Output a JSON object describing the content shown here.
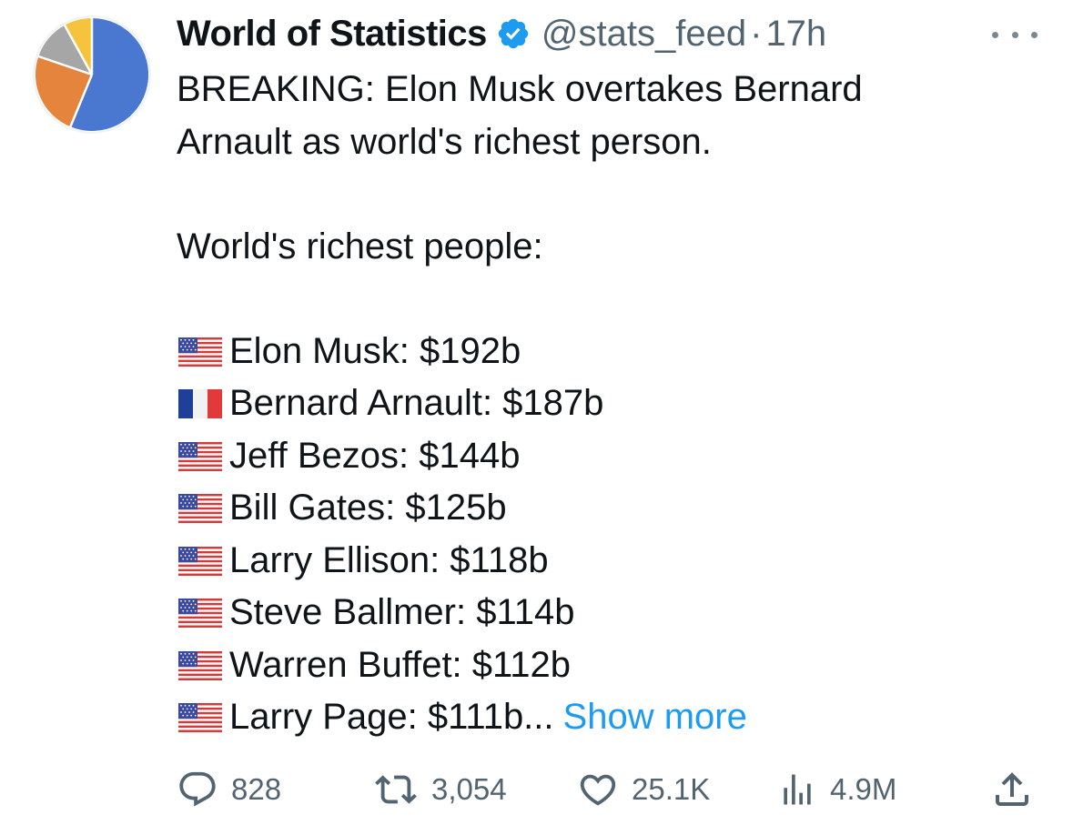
{
  "author": {
    "name": "World of Statistics",
    "handle": "@stats_feed",
    "separator": "·",
    "time": "17h",
    "verified": true,
    "avatar_icon": "pie-chart-icon",
    "avatar_colors": [
      "#4a78d0",
      "#e5843d",
      "#a6a6a6",
      "#f5c43c"
    ]
  },
  "tweet": {
    "line1": "BREAKING: Elon Musk overtakes Bernard",
    "line2": "Arnault as world's richest person.",
    "list_heading": "World's richest people:",
    "entries": [
      {
        "flag": "us-flag-icon",
        "text": "Elon Musk: $192b"
      },
      {
        "flag": "france-flag-icon",
        "text": "Bernard Arnault: $187b"
      },
      {
        "flag": "us-flag-icon",
        "text": "Jeff Bezos: $144b"
      },
      {
        "flag": "us-flag-icon",
        "text": "Bill Gates: $125b"
      },
      {
        "flag": "us-flag-icon",
        "text": "Larry Ellison: $118b"
      },
      {
        "flag": "us-flag-icon",
        "text": "Steve Ballmer: $114b"
      },
      {
        "flag": "us-flag-icon",
        "text": "Warren Buffet: $112b"
      },
      {
        "flag": "us-flag-icon",
        "text": "Larry Page: $111b..."
      }
    ],
    "show_more": "Show more",
    "link_color": "#1d9bf0"
  },
  "actions": {
    "replies": "828",
    "retweets": "3,054",
    "likes": "25.1K",
    "views": "4.9M"
  }
}
